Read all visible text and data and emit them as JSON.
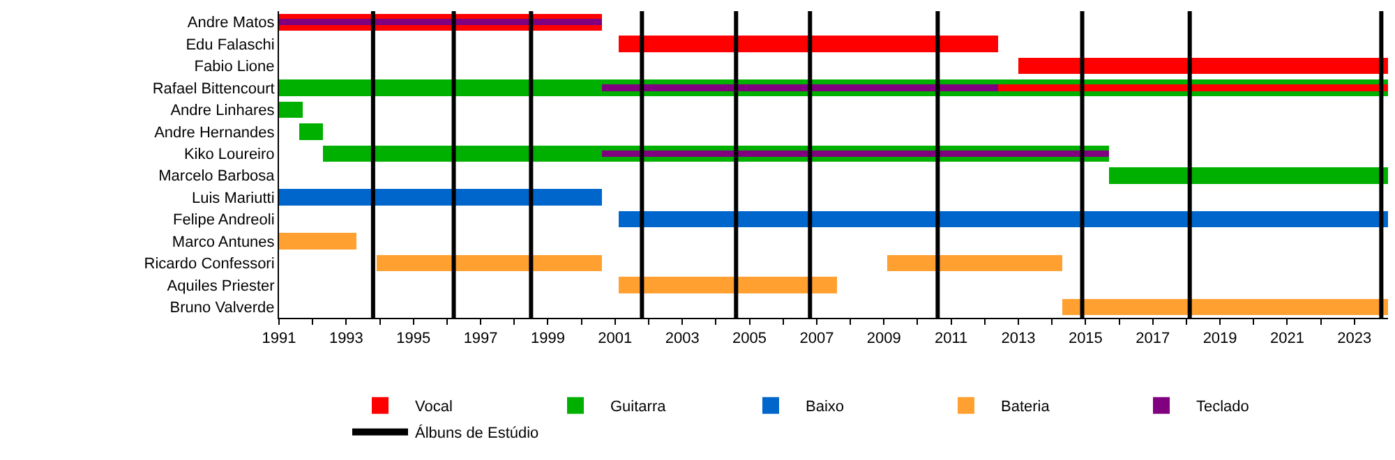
{
  "chart_data": {
    "type": "bar",
    "orientation": "horizontal",
    "categories": [
      "Andre Matos",
      "Edu Falaschi",
      "Fabio Lione",
      "Rafael Bittencourt",
      "Andre Linhares",
      "Andre Hernandes",
      "Kiko Loureiro",
      "Marcelo Barbosa",
      "Luis Mariutti",
      "Felipe Andreoli",
      "Marco Antunes",
      "Ricardo Confessori",
      "Aquiles Priester",
      "Bruno Valverde"
    ],
    "series": [
      {
        "name": "Vocal",
        "color": "#ff0000",
        "base": [
          1991,
          2001.1,
          2013.0,
          2012.4,
          null,
          null,
          null,
          null,
          null,
          null,
          null,
          null,
          null,
          null
        ],
        "values": [
          9.6,
          11.3,
          11.0,
          11.6,
          null,
          null,
          null,
          null,
          null,
          null,
          null,
          null,
          null,
          null
        ]
      },
      {
        "name": "Guitarra",
        "color": "#00b000",
        "base": [
          null,
          null,
          null,
          1991,
          1991,
          1991.6,
          1992.3,
          2015.7,
          null,
          null,
          null,
          null,
          null,
          null
        ],
        "values": [
          null,
          null,
          null,
          33,
          0.7,
          0.7,
          23.4,
          8.3,
          null,
          null,
          null,
          null,
          null,
          null
        ]
      },
      {
        "name": "Baixo",
        "color": "#0066cc",
        "base": [
          null,
          null,
          null,
          null,
          null,
          null,
          null,
          null,
          1991,
          2001.1,
          null,
          null,
          null,
          null
        ],
        "values": [
          null,
          null,
          null,
          null,
          null,
          null,
          null,
          null,
          9.6,
          22.9,
          null,
          null,
          null,
          null
        ]
      },
      {
        "name": "Bateria",
        "color": "#ffa030",
        "base": [
          null,
          null,
          null,
          null,
          null,
          null,
          null,
          null,
          null,
          null,
          1991,
          1993.9,
          2001.1,
          2014.3
        ],
        "values": [
          null,
          null,
          null,
          null,
          null,
          null,
          null,
          null,
          null,
          null,
          2.3,
          6.7,
          6.5,
          9.7
        ]
      },
      {
        "name": "Teclado",
        "color": "#800080",
        "base": [
          1991,
          null,
          null,
          2000.6,
          null,
          null,
          2000.6,
          null,
          null,
          null,
          null,
          null,
          null,
          null
        ],
        "values": [
          9.6,
          null,
          null,
          11.8,
          null,
          null,
          15.1,
          null,
          null,
          null,
          null,
          null,
          null,
          null
        ]
      },
      {
        "color": "#ffa030",
        "base": [
          null,
          null,
          null,
          null,
          null,
          null,
          null,
          null,
          null,
          null,
          null,
          2009.1,
          null,
          null
        ],
        "values": [
          null,
          null,
          null,
          null,
          null,
          null,
          null,
          null,
          null,
          null,
          null,
          5.2,
          null,
          null
        ]
      }
    ],
    "ref_lines": [
      {
        "axis": "x",
        "value": 1993.8,
        "label": "Álbuns de Estúdio",
        "color": "#000000"
      },
      {
        "axis": "x",
        "value": 1996.2,
        "label": null,
        "color": "#000000"
      },
      {
        "axis": "x",
        "value": 1998.5,
        "label": null,
        "color": "#000000"
      },
      {
        "axis": "x",
        "value": 2001.8,
        "label": null,
        "color": "#000000"
      },
      {
        "axis": "x",
        "value": 2004.6,
        "label": null,
        "color": "#000000"
      },
      {
        "axis": "x",
        "value": 2006.8,
        "label": null,
        "color": "#000000"
      },
      {
        "axis": "x",
        "value": 2010.6,
        "label": null,
        "color": "#000000"
      },
      {
        "axis": "x",
        "value": 2014.9,
        "label": null,
        "color": "#000000"
      },
      {
        "axis": "x",
        "value": 2018.1,
        "label": null,
        "color": "#000000"
      },
      {
        "axis": "x",
        "value": 2023.8,
        "label": null,
        "color": "#000000"
      }
    ],
    "xlim": [
      1991,
      2024
    ],
    "xticks": [
      1991,
      {
        "value": 1992,
        "label": null
      },
      1993,
      {
        "value": 1994,
        "label": null
      },
      1995,
      {
        "value": 1996,
        "label": null
      },
      1997,
      {
        "value": 1998,
        "label": null
      },
      1999,
      {
        "value": 2000,
        "label": null
      },
      2001,
      {
        "value": 2002,
        "label": null
      },
      2003,
      {
        "value": 2004,
        "label": null
      },
      2005,
      {
        "value": 2006,
        "label": null
      },
      2007,
      {
        "value": 2008,
        "label": null
      },
      2009,
      {
        "value": 2010,
        "label": null
      },
      2011,
      {
        "value": 2012,
        "label": null
      },
      2013,
      {
        "value": 2014,
        "label": null
      },
      2015,
      {
        "value": 2016,
        "label": null
      },
      2017,
      {
        "value": 2018,
        "label": null
      },
      2019,
      {
        "value": 2020,
        "label": null
      },
      2021,
      {
        "value": 2022,
        "label": null
      },
      2023
    ],
    "grid": false,
    "legend": "bottom"
  }
}
